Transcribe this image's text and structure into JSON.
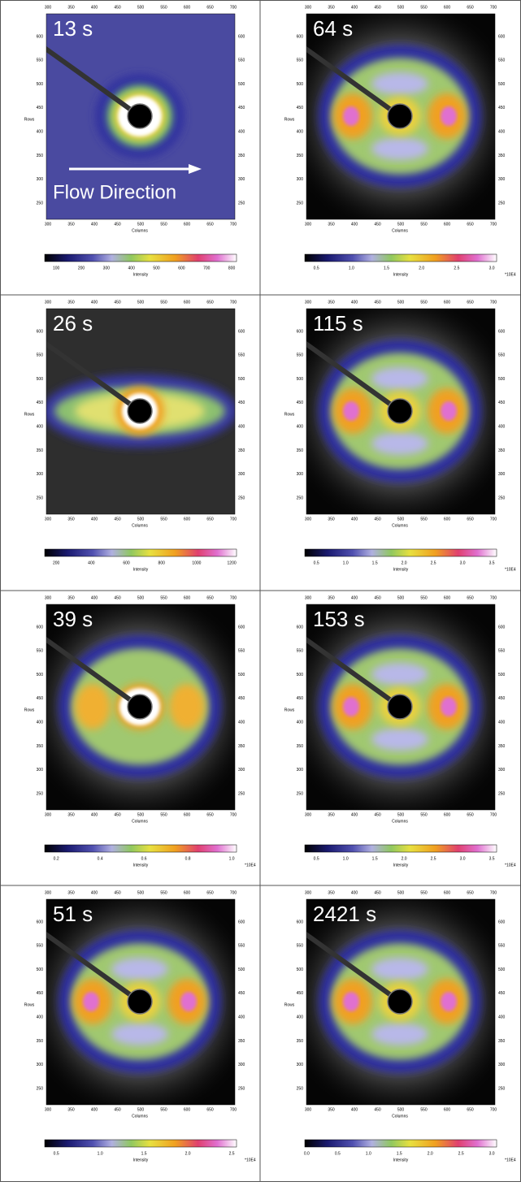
{
  "axes": {
    "x_ticks": [
      "300",
      "350",
      "400",
      "450",
      "500",
      "550",
      "600",
      "650",
      "700"
    ],
    "y_ticks": [
      "600",
      "550",
      "500",
      "450",
      "400",
      "350",
      "300",
      "250"
    ],
    "x_label": "Columns",
    "y_label": "Rows",
    "colorbar_label": "Intensity"
  },
  "panels": [
    {
      "time": "13 s",
      "annotation": "Flow Direction",
      "colorbar_ticks": [
        "100",
        "200",
        "300",
        "400",
        "500",
        "600",
        "700",
        "800"
      ]
    },
    {
      "time": "64 s",
      "colorbar_ticks": [
        "0.5",
        "1.0",
        "1.5",
        "2.0",
        "2.5",
        "3.0"
      ],
      "multiplier": "*10E4"
    },
    {
      "time": "26 s",
      "colorbar_ticks": [
        "200",
        "400",
        "600",
        "800",
        "1000",
        "1200"
      ]
    },
    {
      "time": "115 s",
      "colorbar_ticks": [
        "0.5",
        "1.0",
        "1.5",
        "2.0",
        "2.5",
        "3.0",
        "3.5"
      ],
      "multiplier": "*10E4"
    },
    {
      "time": "39 s",
      "colorbar_ticks": [
        "0.2",
        "0.4",
        "0.6",
        "0.8",
        "1.0"
      ],
      "multiplier": "*10E4"
    },
    {
      "time": "153 s",
      "colorbar_ticks": [
        "0.5",
        "1.0",
        "1.5",
        "2.0",
        "2.5",
        "3.0",
        "3.5"
      ],
      "multiplier": "*10E4"
    },
    {
      "time": "51 s",
      "colorbar_ticks": [
        "0.5",
        "1.0",
        "1.5",
        "2.0",
        "2.5"
      ],
      "multiplier": "*10E4"
    },
    {
      "time": "2421 s",
      "colorbar_ticks": [
        "0.0",
        "0.5",
        "1.0",
        "1.5",
        "2.0",
        "2.5",
        "3.0"
      ],
      "multiplier": "*10E4"
    }
  ]
}
